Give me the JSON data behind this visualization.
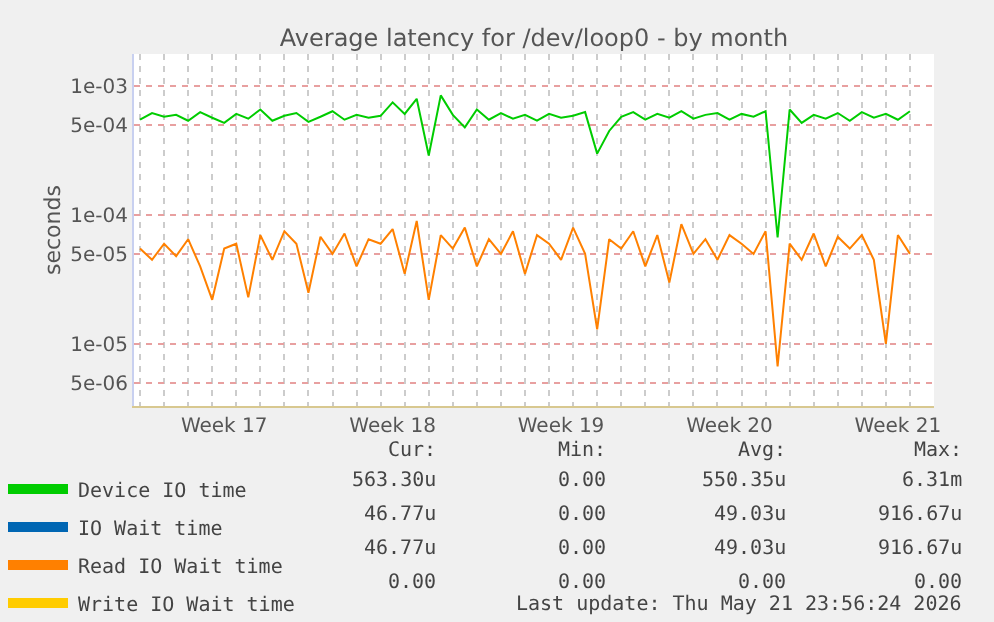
{
  "chart_data": {
    "type": "line",
    "title": "Average latency for /dev/loop0 - by month",
    "ylabel": "seconds",
    "x": [
      "2026-04-20T00:00",
      "2026-04-20T12:00",
      "2026-04-21T00:00",
      "2026-04-21T12:00",
      "2026-04-22T00:00",
      "2026-04-22T12:00",
      "2026-04-23T00:00",
      "2026-04-23T12:00",
      "2026-04-24T00:00",
      "2026-04-24T12:00",
      "2026-04-25T00:00",
      "2026-04-25T12:00",
      "2026-04-26T00:00",
      "2026-04-26T12:00",
      "2026-04-27T00:00",
      "2026-04-27T12:00",
      "2026-04-28T00:00",
      "2026-04-28T12:00",
      "2026-04-29T00:00",
      "2026-04-29T12:00",
      "2026-04-30T00:00",
      "2026-04-30T12:00",
      "2026-05-01T00:00",
      "2026-05-01T12:00",
      "2026-05-02T00:00",
      "2026-05-02T12:00",
      "2026-05-03T00:00",
      "2026-05-03T12:00",
      "2026-05-04T00:00",
      "2026-05-04T12:00",
      "2026-05-05T00:00",
      "2026-05-05T12:00",
      "2026-05-06T00:00",
      "2026-05-06T12:00",
      "2026-05-07T00:00",
      "2026-05-07T12:00",
      "2026-05-08T00:00",
      "2026-05-08T12:00",
      "2026-05-09T00:00",
      "2026-05-09T12:00",
      "2026-05-10T00:00",
      "2026-05-10T12:00",
      "2026-05-11T00:00",
      "2026-05-11T12:00",
      "2026-05-12T00:00",
      "2026-05-12T12:00",
      "2026-05-13T00:00",
      "2026-05-13T12:00",
      "2026-05-14T00:00",
      "2026-05-14T12:00",
      "2026-05-15T00:00",
      "2026-05-15T12:00",
      "2026-05-16T00:00",
      "2026-05-16T12:00",
      "2026-05-17T00:00",
      "2026-05-17T12:00",
      "2026-05-18T00:00",
      "2026-05-18T12:00",
      "2026-05-19T00:00",
      "2026-05-19T12:00",
      "2026-05-20T00:00",
      "2026-05-20T12:00",
      "2026-05-21T00:00",
      "2026-05-21T12:00",
      "2026-05-22T00:00"
    ],
    "series": [
      {
        "name": "Device IO time",
        "color": "#00cc00",
        "values": [
          0.00055,
          0.00062,
          0.00058,
          0.0006,
          0.00054,
          0.00063,
          0.00057,
          0.00052,
          0.00061,
          0.00056,
          0.00066,
          0.00054,
          0.00059,
          0.00062,
          0.00053,
          0.00058,
          0.00064,
          0.00055,
          0.0006,
          0.00057,
          0.00059,
          0.00075,
          0.00061,
          0.0008,
          0.00029,
          0.00085,
          0.0006,
          0.00048,
          0.00066,
          0.00055,
          0.00062,
          0.00056,
          0.0006,
          0.00054,
          0.00061,
          0.00057,
          0.00059,
          0.00063,
          0.0003,
          0.00045,
          0.00058,
          0.00063,
          0.00055,
          0.00061,
          0.00057,
          0.00064,
          0.00056,
          0.0006,
          0.00062,
          0.00055,
          0.00061,
          0.00058,
          0.00064,
          6.7e-05,
          0.00066,
          0.00052,
          0.0006,
          0.00056,
          0.00062,
          0.00054,
          0.00063,
          0.00057,
          0.00061,
          0.00055,
          0.00064
        ]
      },
      {
        "name": "IO Wait time",
        "color": "#0066b3",
        "values": [
          null,
          null,
          null,
          null,
          null,
          null,
          null,
          null,
          null,
          null,
          null,
          null,
          null,
          null,
          null,
          null,
          null,
          null,
          null,
          null,
          null,
          null,
          null,
          null,
          null,
          null,
          null,
          null,
          null,
          null,
          null,
          null,
          null,
          null,
          null,
          null,
          null,
          null,
          null,
          null,
          null,
          null,
          null,
          null,
          null,
          null,
          null,
          null,
          null,
          null,
          null,
          null,
          null,
          null,
          null,
          null,
          null,
          null,
          null,
          null,
          null,
          null,
          null,
          null,
          null
        ]
      },
      {
        "name": "Read IO Wait time",
        "color": "#ff8000",
        "values": [
          5.5e-05,
          4.5e-05,
          6e-05,
          4.8e-05,
          6.5e-05,
          4e-05,
          2.2e-05,
          5.5e-05,
          6e-05,
          2.3e-05,
          7e-05,
          4.5e-05,
          7.5e-05,
          6e-05,
          2.5e-05,
          6.8e-05,
          5e-05,
          7.2e-05,
          4e-05,
          6.5e-05,
          6e-05,
          7.8e-05,
          3.5e-05,
          9e-05,
          2.2e-05,
          7e-05,
          5.5e-05,
          8e-05,
          4e-05,
          6.5e-05,
          5e-05,
          7.5e-05,
          3.5e-05,
          7e-05,
          6e-05,
          4.5e-05,
          8e-05,
          5e-05,
          1.3e-05,
          6.5e-05,
          5.5e-05,
          7.5e-05,
          4e-05,
          7e-05,
          3e-05,
          8.5e-05,
          5e-05,
          6.5e-05,
          4.5e-05,
          7e-05,
          6e-05,
          5e-05,
          7.5e-05,
          6.7e-06,
          6e-05,
          4.5e-05,
          7.2e-05,
          4e-05,
          6.8e-05,
          5.5e-05,
          7e-05,
          4.5e-05,
          1e-05,
          7e-05,
          5e-05
        ]
      },
      {
        "name": "Write IO Wait time",
        "color": "#ffcc00",
        "values": [
          null,
          null,
          null,
          null,
          null,
          null,
          null,
          null,
          null,
          null,
          null,
          null,
          null,
          null,
          null,
          null,
          null,
          null,
          null,
          null,
          null,
          null,
          null,
          null,
          null,
          null,
          null,
          null,
          null,
          null,
          null,
          null,
          null,
          null,
          null,
          null,
          null,
          null,
          null,
          null,
          null,
          null,
          null,
          null,
          null,
          null,
          null,
          null,
          null,
          null,
          null,
          null,
          null,
          null,
          null,
          null,
          null,
          null,
          null,
          null,
          null,
          null,
          null,
          null,
          null
        ]
      }
    ],
    "log": true,
    "xlim": [
      "2026-04-19T18:00",
      "2026-05-23T00:00"
    ],
    "xticks": [
      {
        "value": "2026-04-23T12:00",
        "label": "Week 17"
      },
      {
        "value": "2026-04-30T12:00",
        "label": "Week 18"
      },
      {
        "value": "2026-05-07T12:00",
        "label": "Week 19"
      },
      {
        "value": "2026-05-14T12:00",
        "label": "Week 20"
      },
      {
        "value": "2026-05-21T12:00",
        "label": "Week 21"
      }
    ],
    "ylim": [
      3.3e-06,
      0.00178
    ],
    "yticks": [
      {
        "value": 5e-06,
        "label": "5e-06"
      },
      {
        "value": 1e-05,
        "label": "1e-05"
      },
      {
        "value": 5e-05,
        "label": "5e-05"
      },
      {
        "value": 0.0001,
        "label": "1e-04"
      },
      {
        "value": 0.0005,
        "label": "5e-04"
      },
      {
        "value": 0.001,
        "label": "1e-03"
      }
    ],
    "grid": true,
    "legend": "bottom",
    "annotations": [
      "Cur:",
      "Min:",
      "Avg:",
      "Max:",
      "563.30u",
      "0.00",
      "550.35u",
      "6.31m",
      "46.77u",
      "0.00",
      "49.03u",
      "916.67u",
      "46.77u",
      "0.00",
      "49.03u",
      "916.67u",
      "0.00",
      "0.00",
      "0.00",
      "0.00",
      "Last update: Thu May 21 23:56:24 2026"
    ]
  }
}
